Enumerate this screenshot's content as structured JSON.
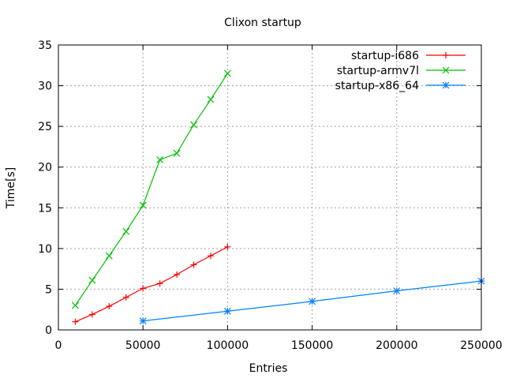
{
  "chart_data": {
    "type": "line",
    "title": "Clixon startup",
    "xlabel": "Entries",
    "ylabel": "Time[s]",
    "xlim": [
      0,
      250000
    ],
    "ylim": [
      0,
      35
    ],
    "xticks": [
      0,
      50000,
      100000,
      150000,
      200000,
      250000
    ],
    "yticks": [
      0,
      5,
      10,
      15,
      20,
      25,
      30,
      35
    ],
    "grid": true,
    "legend_position": "top-right",
    "series": [
      {
        "name": "startup-i686",
        "color": "#ff0000",
        "marker": "plus",
        "x": [
          10000,
          20000,
          30000,
          40000,
          50000,
          60000,
          70000,
          80000,
          90000,
          100000
        ],
        "y": [
          1.0,
          1.9,
          2.9,
          4.0,
          5.1,
          5.7,
          6.8,
          8.0,
          9.1,
          10.2
        ]
      },
      {
        "name": "startup-armv7l",
        "color": "#00c000",
        "marker": "cross",
        "x": [
          10000,
          20000,
          30000,
          40000,
          50000,
          60000,
          70000,
          80000,
          90000,
          100000
        ],
        "y": [
          3.0,
          6.1,
          9.1,
          12.1,
          15.3,
          20.9,
          21.7,
          25.2,
          28.3,
          31.5
        ]
      },
      {
        "name": "startup-x86_64",
        "color": "#0080ff",
        "marker": "star",
        "x": [
          50000,
          100000,
          150000,
          200000,
          250000
        ],
        "y": [
          1.1,
          2.3,
          3.5,
          4.8,
          6.0
        ]
      }
    ]
  }
}
